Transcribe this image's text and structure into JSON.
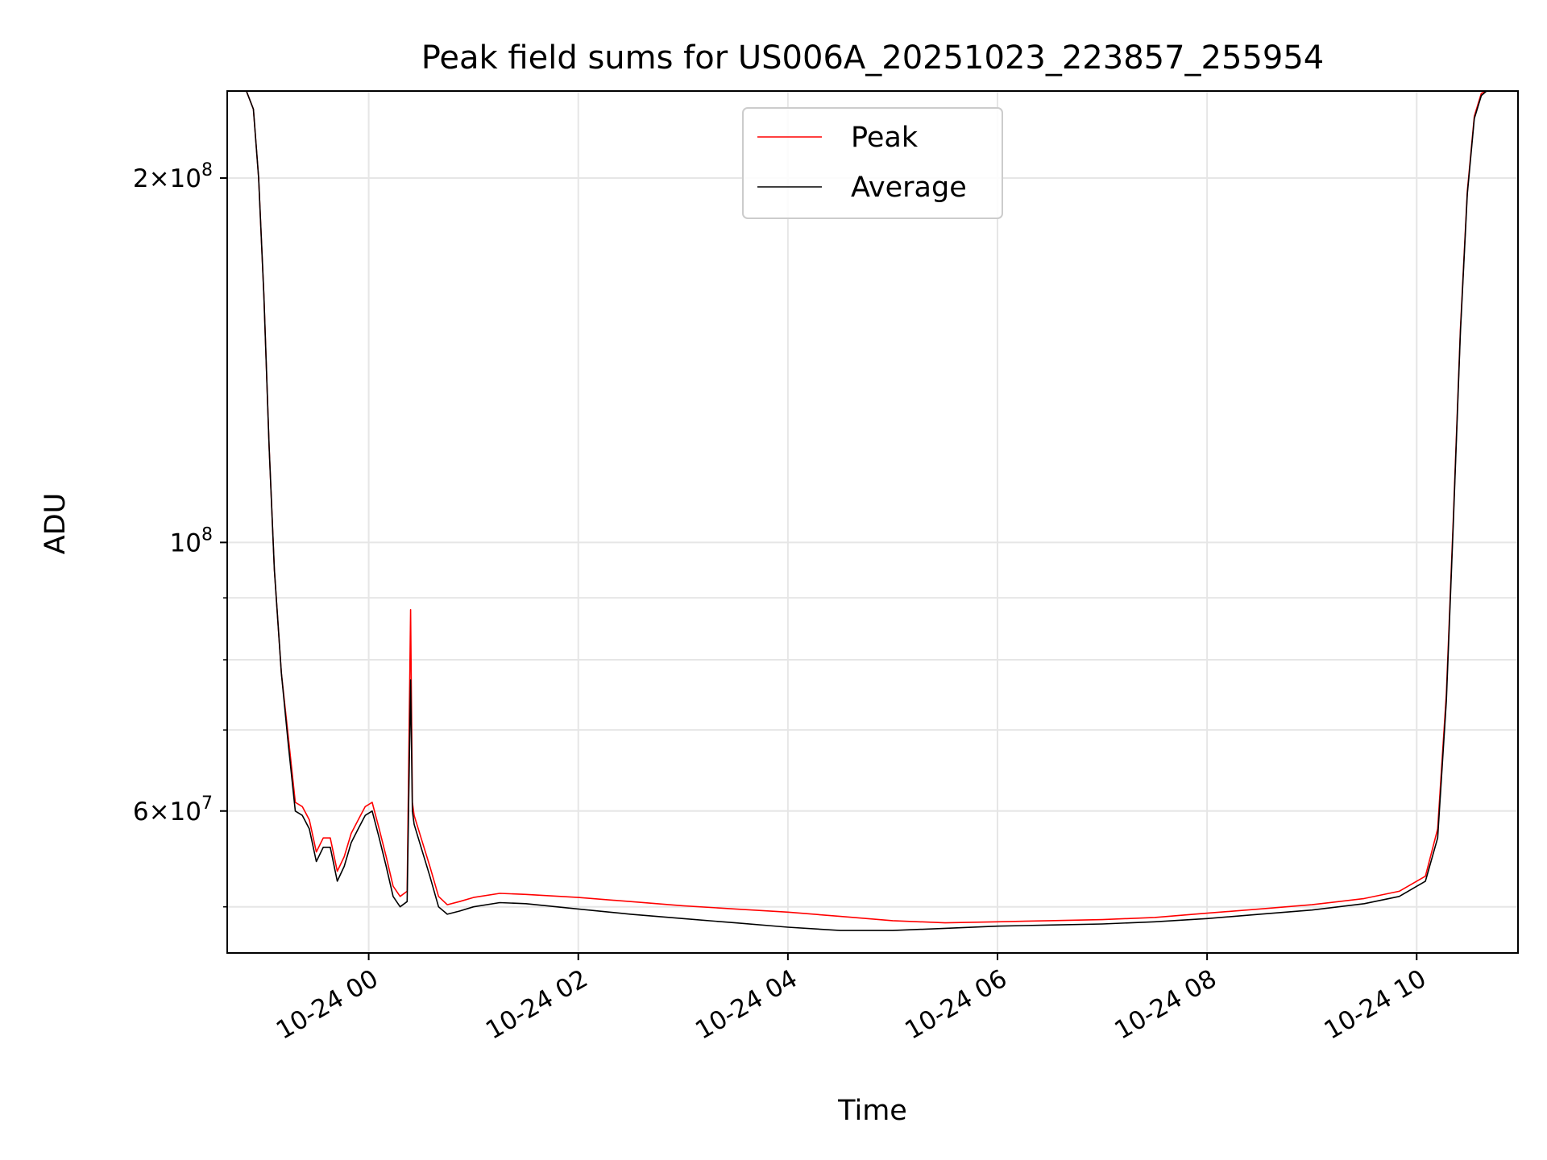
{
  "chart_data": {
    "type": "line",
    "title": "Peak field sums for US006A_20251023_223857_255954",
    "xlabel": "Time",
    "ylabel": "ADU",
    "x_type": "datetime",
    "xlim": [
      "2025-10-23 22:39",
      "2025-10-24 10:58"
    ],
    "ylim": [
      45800000,
      236000000
    ],
    "yscale": "log",
    "grid": true,
    "legend_position": "upper-center",
    "x_ticks": [
      {
        "value": "2025-10-24 00:00",
        "label": "10-24 00"
      },
      {
        "value": "2025-10-24 02:00",
        "label": "10-24 02"
      },
      {
        "value": "2025-10-24 04:00",
        "label": "10-24 04"
      },
      {
        "value": "2025-10-24 06:00",
        "label": "10-24 06"
      },
      {
        "value": "2025-10-24 08:00",
        "label": "10-24 08"
      },
      {
        "value": "2025-10-24 10:00",
        "label": "10-24 10"
      }
    ],
    "y_ticks": [
      {
        "value": 200000000,
        "base": "2",
        "exp": "8"
      },
      {
        "value": 100000000,
        "base": "",
        "exp": "8"
      },
      {
        "value": 60000000,
        "base": "6",
        "exp": "7"
      }
    ],
    "series": [
      {
        "name": "Peak",
        "color": "#ff0000",
        "x": [
          "2025-10-23 22:50",
          "2025-10-23 22:54",
          "2025-10-23 22:57",
          "2025-10-23 23:00",
          "2025-10-23 23:03",
          "2025-10-23 23:06",
          "2025-10-23 23:10",
          "2025-10-23 23:14",
          "2025-10-23 23:18",
          "2025-10-23 23:22",
          "2025-10-23 23:26",
          "2025-10-23 23:30",
          "2025-10-23 23:34",
          "2025-10-23 23:38",
          "2025-10-23 23:42",
          "2025-10-23 23:46",
          "2025-10-23 23:50",
          "2025-10-23 23:54",
          "2025-10-23 23:58",
          "2025-10-24 00:02",
          "2025-10-24 00:06",
          "2025-10-24 00:10",
          "2025-10-24 00:14",
          "2025-10-24 00:18",
          "2025-10-24 00:22",
          "2025-10-24 00:24",
          "2025-10-24 00:25",
          "2025-10-24 00:26",
          "2025-10-24 00:30",
          "2025-10-24 00:35",
          "2025-10-24 00:40",
          "2025-10-24 00:45",
          "2025-10-24 00:52",
          "2025-10-24 01:00",
          "2025-10-24 01:15",
          "2025-10-24 01:30",
          "2025-10-24 02:00",
          "2025-10-24 02:30",
          "2025-10-24 03:00",
          "2025-10-24 03:30",
          "2025-10-24 04:00",
          "2025-10-24 04:30",
          "2025-10-24 05:00",
          "2025-10-24 05:30",
          "2025-10-24 06:00",
          "2025-10-24 06:30",
          "2025-10-24 07:00",
          "2025-10-24 07:30",
          "2025-10-24 08:00",
          "2025-10-24 08:30",
          "2025-10-24 09:00",
          "2025-10-24 09:30",
          "2025-10-24 09:50",
          "2025-10-24 10:05",
          "2025-10-24 10:12",
          "2025-10-24 10:17",
          "2025-10-24 10:21",
          "2025-10-24 10:25",
          "2025-10-24 10:29",
          "2025-10-24 10:33",
          "2025-10-24 10:37",
          "2025-10-24 10:40",
          "2025-10-24 10:43",
          "2025-10-24 10:47"
        ],
        "y": [
          236000000,
          228000000,
          200000000,
          160000000,
          120000000,
          95000000,
          78000000,
          69000000,
          61000000,
          60500000,
          59000000,
          55500000,
          57000000,
          57000000,
          53500000,
          55000000,
          57500000,
          59000000,
          60500000,
          61000000,
          58000000,
          55000000,
          52000000,
          51000000,
          51500000,
          88000000,
          61000000,
          59500000,
          57000000,
          54000000,
          51000000,
          50200000,
          50500000,
          50900000,
          51300000,
          51200000,
          50900000,
          50500000,
          50100000,
          49800000,
          49500000,
          49100000,
          48700000,
          48500000,
          48600000,
          48700000,
          48800000,
          49000000,
          49400000,
          49800000,
          50200000,
          50800000,
          51500000,
          53000000,
          58000000,
          75000000,
          105000000,
          150000000,
          195000000,
          225000000,
          235000000,
          236000000,
          236000000,
          236000000
        ]
      },
      {
        "name": "Average",
        "color": "#000000",
        "x": [
          "2025-10-23 22:50",
          "2025-10-23 22:54",
          "2025-10-23 22:57",
          "2025-10-23 23:00",
          "2025-10-23 23:03",
          "2025-10-23 23:06",
          "2025-10-23 23:10",
          "2025-10-23 23:14",
          "2025-10-23 23:18",
          "2025-10-23 23:22",
          "2025-10-23 23:26",
          "2025-10-23 23:30",
          "2025-10-23 23:34",
          "2025-10-23 23:38",
          "2025-10-23 23:42",
          "2025-10-23 23:46",
          "2025-10-23 23:50",
          "2025-10-23 23:54",
          "2025-10-23 23:58",
          "2025-10-24 00:02",
          "2025-10-24 00:06",
          "2025-10-24 00:10",
          "2025-10-24 00:14",
          "2025-10-24 00:18",
          "2025-10-24 00:22",
          "2025-10-24 00:24",
          "2025-10-24 00:25",
          "2025-10-24 00:26",
          "2025-10-24 00:30",
          "2025-10-24 00:35",
          "2025-10-24 00:40",
          "2025-10-24 00:45",
          "2025-10-24 00:52",
          "2025-10-24 01:00",
          "2025-10-24 01:15",
          "2025-10-24 01:30",
          "2025-10-24 02:00",
          "2025-10-24 02:30",
          "2025-10-24 03:00",
          "2025-10-24 03:30",
          "2025-10-24 04:00",
          "2025-10-24 04:30",
          "2025-10-24 05:00",
          "2025-10-24 05:30",
          "2025-10-24 06:00",
          "2025-10-24 06:30",
          "2025-10-24 07:00",
          "2025-10-24 07:30",
          "2025-10-24 08:00",
          "2025-10-24 08:30",
          "2025-10-24 09:00",
          "2025-10-24 09:30",
          "2025-10-24 09:50",
          "2025-10-24 10:05",
          "2025-10-24 10:12",
          "2025-10-24 10:17",
          "2025-10-24 10:21",
          "2025-10-24 10:25",
          "2025-10-24 10:29",
          "2025-10-24 10:33",
          "2025-10-24 10:37",
          "2025-10-24 10:40",
          "2025-10-24 10:43",
          "2025-10-24 10:47"
        ],
        "y": [
          236000000,
          228000000,
          200000000,
          160000000,
          120000000,
          95000000,
          78000000,
          68000000,
          60000000,
          59500000,
          58000000,
          54500000,
          56000000,
          56000000,
          52500000,
          54000000,
          56500000,
          58000000,
          59500000,
          60000000,
          57000000,
          54000000,
          51000000,
          50000000,
          50500000,
          77000000,
          60000000,
          58500000,
          56000000,
          53000000,
          50000000,
          49300000,
          49600000,
          50000000,
          50400000,
          50300000,
          49800000,
          49300000,
          48900000,
          48500000,
          48100000,
          47800000,
          47800000,
          48000000,
          48200000,
          48300000,
          48400000,
          48600000,
          48900000,
          49300000,
          49700000,
          50300000,
          51000000,
          52500000,
          57000000,
          74000000,
          104000000,
          149000000,
          194000000,
          224000000,
          234000000,
          236000000,
          236000000,
          236000000
        ]
      }
    ]
  }
}
